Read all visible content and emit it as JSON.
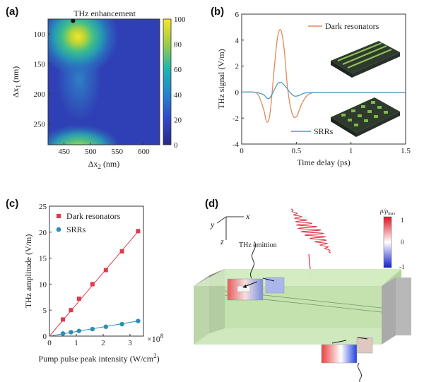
{
  "panels": {
    "a": {
      "label": "(a)",
      "title": "THz enhancement",
      "xlabel_main": "Δx",
      "xlabel_sub": "2",
      "xlabel_unit": " (nm)",
      "ylabel_main": "Δx",
      "ylabel_sub": "1",
      "ylabel_unit": " (nm)",
      "xticks": [
        "450",
        "500",
        "550",
        "600"
      ],
      "yticks": [
        "100",
        "150",
        "200",
        "250"
      ],
      "colorbar_ticks": [
        "0",
        "20",
        "40",
        "60",
        "80",
        "100"
      ]
    },
    "b": {
      "label": "(b)",
      "xlabel": "Time delay (ps)",
      "ylabel": "THz signal (V/m)",
      "xticks": [
        "0",
        "0.5",
        "1",
        "1.5"
      ],
      "yticks": [
        "-4",
        "-2",
        "0",
        "2",
        "4",
        "6"
      ],
      "legend": [
        "Dark resonators",
        "SRRs"
      ]
    },
    "c": {
      "label": "(c)",
      "xlabel_main": "Pump pulse peak intensity (W/cm",
      "xlabel_sup": "2",
      "xlabel_end": ")",
      "ylabel": "THz amplitude (V/m)",
      "xticks": [
        "0",
        "1",
        "2",
        "3"
      ],
      "yticks": [
        "0",
        "5",
        "10",
        "15",
        "20",
        "25"
      ],
      "multiplier_main": "×10",
      "multiplier_sup": "8",
      "legend": [
        "Dark resonators",
        "SRRs"
      ]
    },
    "d": {
      "label": "(d)",
      "axis_x": "x",
      "axis_y": "y",
      "axis_z": "z",
      "emission_label": "THz emittion",
      "colorbar_title": "ρ/ρ",
      "colorbar_title_sub": "max",
      "colorbar_ticks": [
        "1",
        "0",
        "-1"
      ]
    }
  },
  "chart_data": [
    {
      "type": "heatmap",
      "title": "THz enhancement",
      "xlabel": "Δx2 (nm)",
      "ylabel": "Δx1 (nm)",
      "xlim": [
        420,
        630
      ],
      "ylim": [
        75,
        285
      ],
      "clim": [
        0,
        100
      ],
      "peaks": [
        {
          "x": 470,
          "y": 80,
          "value": 100
        },
        {
          "x": 480,
          "y": 285,
          "value": 78
        }
      ],
      "marker": {
        "x": 467,
        "y": 78
      }
    },
    {
      "type": "line",
      "xlabel": "Time delay (ps)",
      "ylabel": "THz signal (V/m)",
      "xlim": [
        0,
        1.5
      ],
      "ylim": [
        -4,
        6
      ],
      "series": [
        {
          "name": "Dark resonators",
          "color": "#e0895a",
          "x": [
            0,
            0.05,
            0.1,
            0.15,
            0.2,
            0.23,
            0.26,
            0.3,
            0.33,
            0.36,
            0.39,
            0.42,
            0.46,
            0.5,
            0.55,
            0.6,
            0.65,
            0.7,
            1.0,
            1.5
          ],
          "y": [
            0.0,
            0.0,
            0.0,
            -0.2,
            -1.3,
            -2.3,
            -1.6,
            2.0,
            4.3,
            4.75,
            3.2,
            0.3,
            -1.6,
            -1.9,
            -0.9,
            -0.25,
            -0.05,
            -0.02,
            -0.02,
            -0.02
          ]
        },
        {
          "name": "SRRs",
          "color": "#4a9bc4",
          "x": [
            0,
            0.1,
            0.15,
            0.2,
            0.25,
            0.3,
            0.33,
            0.36,
            0.4,
            0.44,
            0.48,
            0.52,
            0.56,
            0.6,
            0.7,
            1.0,
            1.5
          ],
          "y": [
            0.0,
            0.0,
            -0.05,
            -0.2,
            -0.5,
            0.2,
            0.65,
            0.75,
            0.45,
            0.0,
            -0.3,
            -0.28,
            -0.12,
            -0.05,
            -0.02,
            -0.02,
            -0.02
          ]
        }
      ]
    },
    {
      "type": "scatter",
      "xlabel": "Pump pulse peak intensity (W/cm2)",
      "ylabel": "THz amplitude (V/m)",
      "xlim": [
        0,
        3.5
      ],
      "ylim": [
        0,
        25
      ],
      "x_multiplier": "×10^8",
      "series": [
        {
          "name": "Dark resonators",
          "color": "#e0394a",
          "x": [
            0.5,
            0.8,
            1.1,
            1.6,
            2.1,
            2.7,
            3.3
          ],
          "y": [
            3.2,
            5.0,
            7.2,
            10.0,
            12.7,
            16.3,
            20.2
          ],
          "fit_slope": 6.1
        },
        {
          "name": "SRRs",
          "color": "#2a8fb8",
          "x": [
            0.5,
            0.8,
            1.1,
            1.6,
            2.1,
            2.7,
            3.3
          ],
          "y": [
            0.5,
            0.75,
            1.0,
            1.35,
            1.8,
            2.3,
            2.9
          ],
          "fit_slope": 0.88
        }
      ]
    }
  ]
}
